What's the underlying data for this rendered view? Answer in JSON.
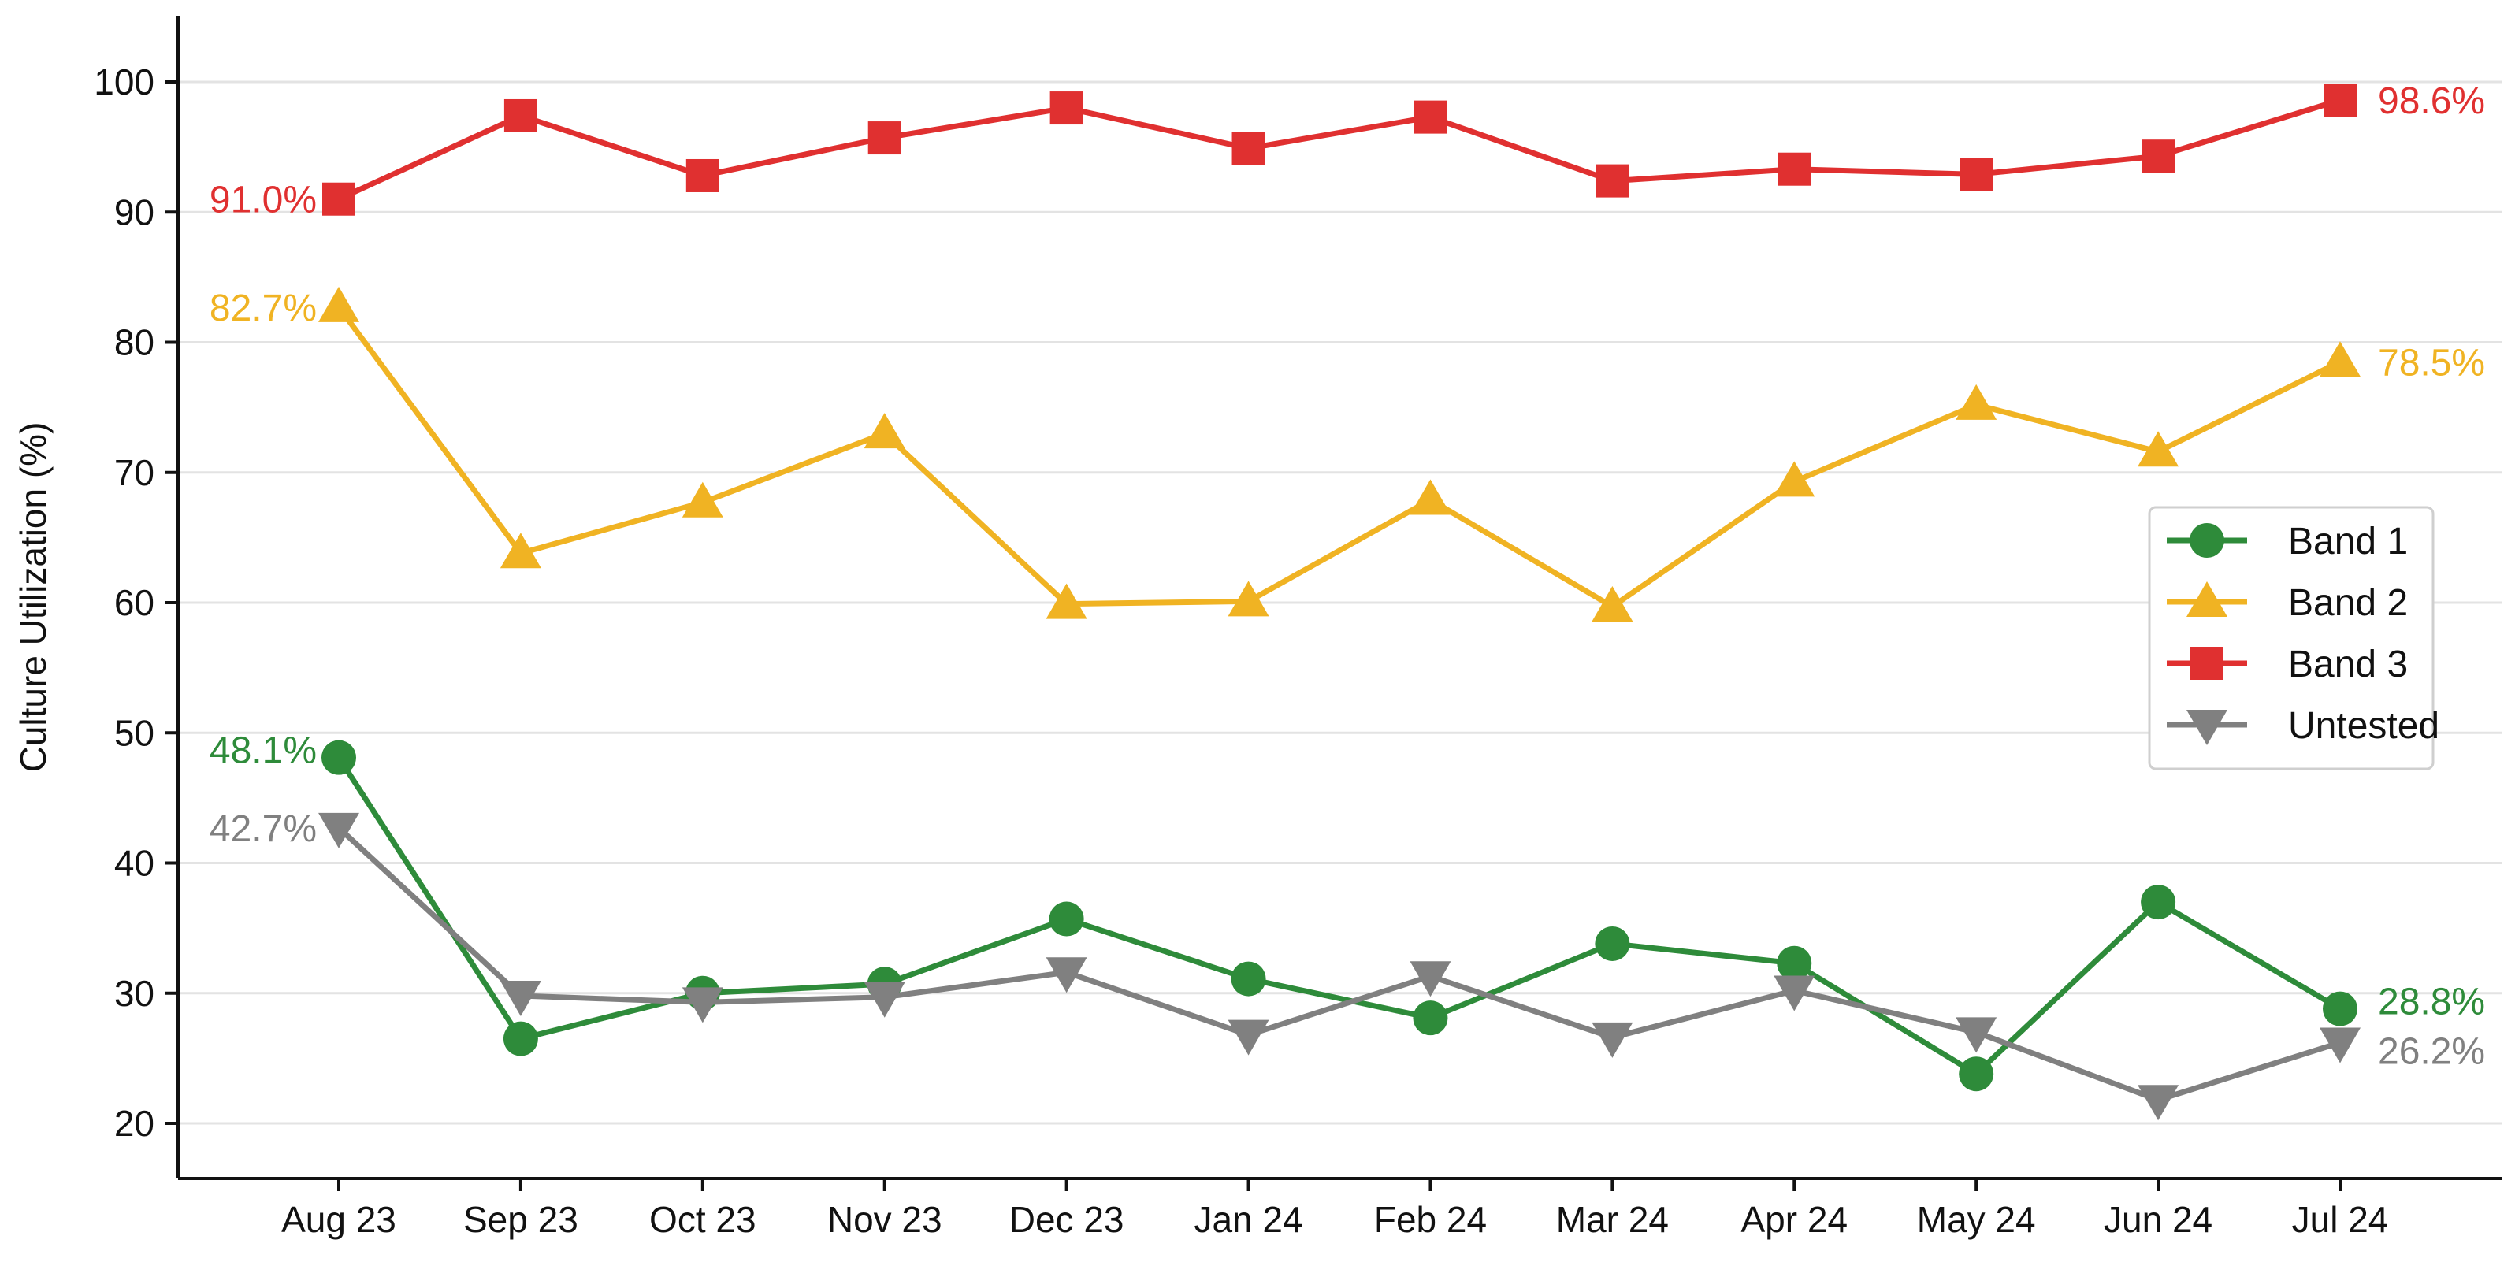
{
  "chart_data": {
    "type": "line",
    "title": "",
    "xlabel": "",
    "ylabel": "Culture Utilization (%)",
    "ylim": [
      15,
      105
    ],
    "y_ticks": [
      20,
      30,
      40,
      50,
      60,
      70,
      80,
      90,
      100
    ],
    "grid": "horizontal",
    "legend_position": "right",
    "categories": [
      "Aug 23",
      "Sep 23",
      "Oct 23",
      "Nov 23",
      "Dec 23",
      "Jan 24",
      "Feb 24",
      "Mar 24",
      "Apr 24",
      "May 24",
      "Jun 24",
      "Jul 24"
    ],
    "series": [
      {
        "name": "Band 1",
        "color": "#2e8b3a",
        "marker": "circle",
        "values": [
          48.1,
          26.5,
          30.0,
          30.7,
          35.7,
          31.1,
          28.1,
          33.8,
          32.3,
          23.8,
          37.0,
          28.8
        ],
        "start_label": "48.1%",
        "end_label": "28.8%"
      },
      {
        "name": "Band 2",
        "color": "#f0b323",
        "marker": "triangle-up",
        "values": [
          82.7,
          63.8,
          67.7,
          73.0,
          59.9,
          60.1,
          67.9,
          59.7,
          69.3,
          75.2,
          71.6,
          78.5
        ],
        "start_label": "82.7%",
        "end_label": "78.5%"
      },
      {
        "name": "Band 3",
        "color": "#e03030",
        "marker": "square",
        "values": [
          91.0,
          97.4,
          92.8,
          95.7,
          98.0,
          94.9,
          97.3,
          92.4,
          93.3,
          92.9,
          94.3,
          98.6
        ],
        "start_label": "91.0%",
        "end_label": "98.6%"
      },
      {
        "name": "Untested",
        "color": "#808080",
        "marker": "triangle-down",
        "values": [
          42.7,
          29.8,
          29.3,
          29.7,
          31.6,
          26.8,
          31.3,
          26.6,
          30.2,
          27.0,
          21.8,
          26.2
        ],
        "start_label": "42.7%",
        "end_label": "26.2%"
      }
    ]
  }
}
